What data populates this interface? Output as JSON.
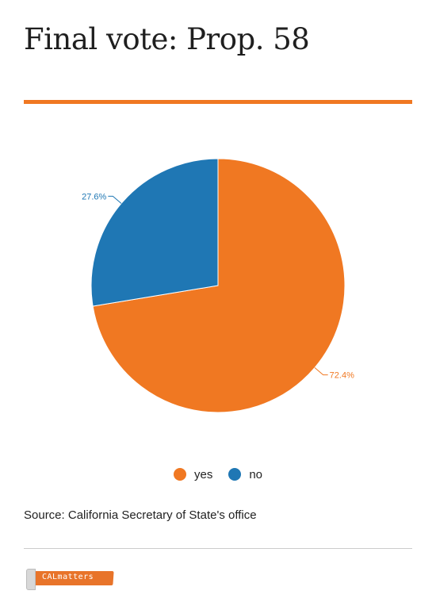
{
  "header": {
    "title": "Final vote: Prop. 58"
  },
  "accent_color": "#f07822",
  "chart_data": {
    "type": "pie",
    "title": "Final vote: Prop. 58",
    "series": [
      {
        "name": "yes",
        "value": 72.4,
        "label": "72.4%",
        "color": "#f07822"
      },
      {
        "name": "no",
        "value": 27.6,
        "label": "27.6%",
        "color": "#1f77b4"
      }
    ],
    "legend": "bottom-center"
  },
  "legend": {
    "items": [
      {
        "label": "yes",
        "color": "#f07822"
      },
      {
        "label": "no",
        "color": "#1f77b4"
      }
    ]
  },
  "footer": {
    "source": "Source: California Secretary of State's office",
    "logo_text": "CALmatters"
  }
}
